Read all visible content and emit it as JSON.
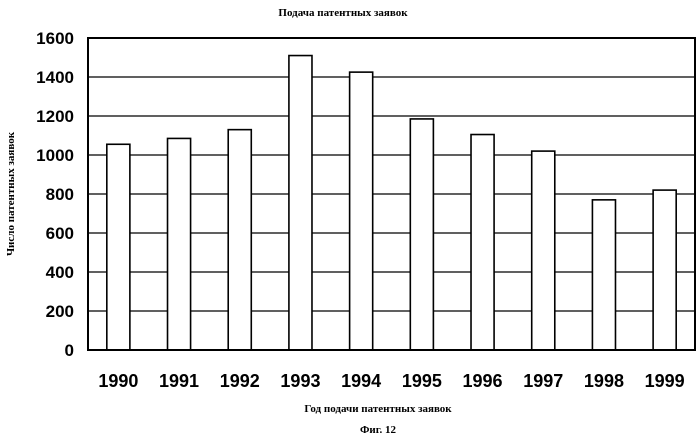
{
  "chart_data": {
    "type": "bar",
    "title": "Подача патентных заявок",
    "xlabel": "Год подачи патентных заявок",
    "ylabel": "Число патентных заявок",
    "categories": [
      "1990",
      "1991",
      "1992",
      "1993",
      "1994",
      "1995",
      "1996",
      "1997",
      "1998",
      "1999"
    ],
    "values": [
      1055,
      1085,
      1130,
      1510,
      1425,
      1185,
      1105,
      1020,
      770,
      820
    ],
    "ylim": [
      0,
      1600
    ],
    "yticks": [
      0,
      200,
      400,
      600,
      800,
      1000,
      1200,
      1400,
      1600
    ],
    "grid": true,
    "legend": "none",
    "bar_fill": "#ffffff",
    "bar_stroke": "#000000"
  },
  "caption": "Фиг. 12"
}
